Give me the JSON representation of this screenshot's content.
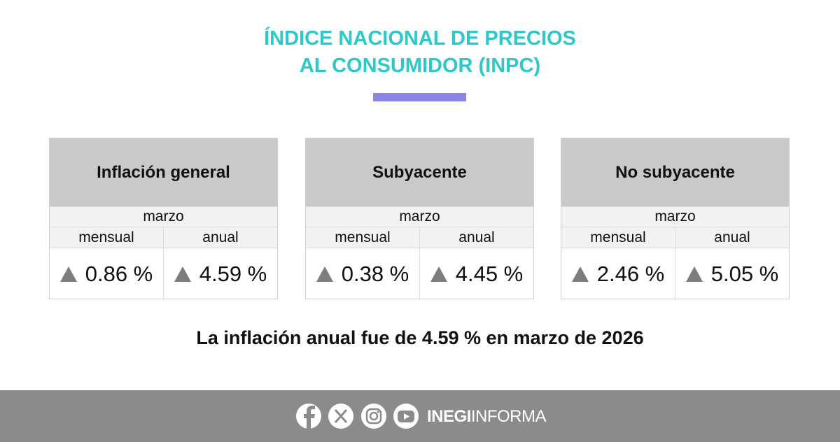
{
  "header": {
    "title_lines": [
      "ÍNDICE NACIONAL DE PRECIOS",
      "AL CONSUMIDOR (INPC)"
    ]
  },
  "cards": [
    {
      "title": "Inflación general",
      "period": "marzo",
      "columns": [
        "mensual",
        "anual"
      ],
      "values": [
        "0.86 %",
        "4.59 %"
      ]
    },
    {
      "title": "Subyacente",
      "period": "marzo",
      "columns": [
        "mensual",
        "anual"
      ],
      "values": [
        "0.38 %",
        "4.45 %"
      ]
    },
    {
      "title": "No subyacente",
      "period": "marzo",
      "columns": [
        "mensual",
        "anual"
      ],
      "values": [
        "2.46 %",
        "5.05 %"
      ]
    }
  ],
  "summary": "La inflación anual fue de 4.59 % en marzo de 2026",
  "footer": {
    "brand_bold": "INEGI",
    "brand_regular": "INFORMA"
  }
}
